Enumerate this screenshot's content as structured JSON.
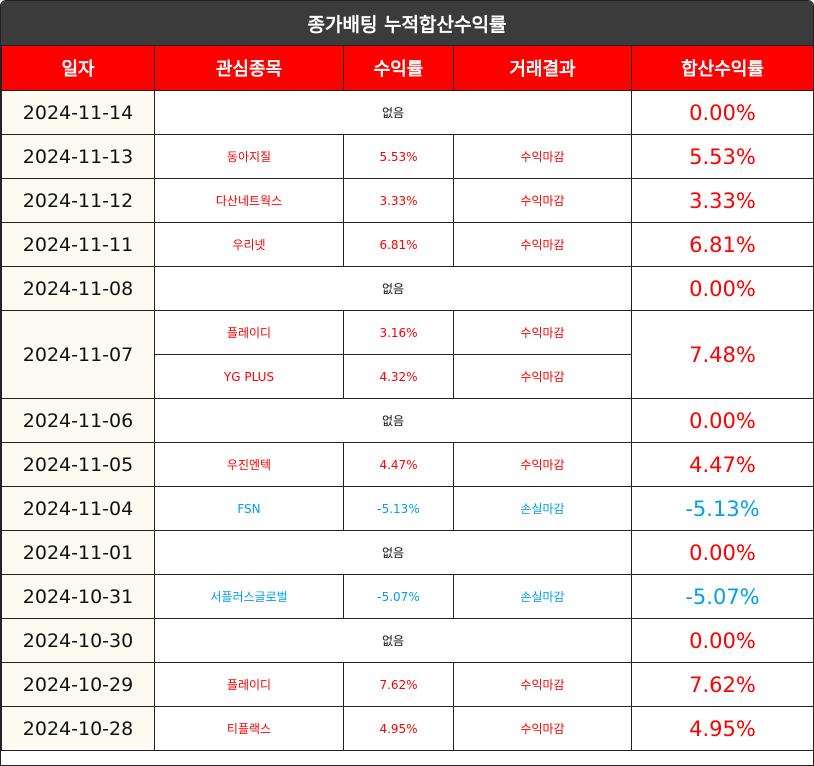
{
  "title": "종가배팅 누적합산수익률",
  "headers": [
    "일자",
    "관심종목",
    "수익률",
    "거래결과",
    "합산수익률"
  ],
  "rows": [
    {
      "date": "2024-11-14",
      "none": "없음",
      "total": "0.00%"
    },
    {
      "date": "2024-11-13",
      "name": "동아지질",
      "rate": "5.53%",
      "result": "수익마감",
      "total": "5.53%"
    },
    {
      "date": "2024-11-12",
      "name": "다산네트웍스",
      "rate": "3.33%",
      "result": "수익마감",
      "total": "3.33%"
    },
    {
      "date": "2024-11-11",
      "name": "우리넷",
      "rate": "6.81%",
      "result": "수익마감",
      "total": "6.81%"
    },
    {
      "date": "2024-11-08",
      "none": "없음",
      "total": "0.00%"
    },
    {
      "date": "2024-11-07",
      "name": "플레이디",
      "rate": "3.16%",
      "result": "수익마감",
      "total": "7.48%",
      "name2": "YG PLUS",
      "rate2": "4.32%",
      "result2": "수익마감"
    },
    {
      "date": "2024-11-06",
      "none": "없음",
      "total": "0.00%"
    },
    {
      "date": "2024-11-05",
      "name": "우진엔텍",
      "rate": "4.47%",
      "result": "수익마감",
      "total": "4.47%"
    },
    {
      "date": "2024-11-04",
      "name": "FSN",
      "rate": "-5.13%",
      "result": "손실마감",
      "total": "-5.13%"
    },
    {
      "date": "2024-11-01",
      "none": "없음",
      "total": "0.00%"
    },
    {
      "date": "2024-10-31",
      "name": "서플러스글로벌",
      "rate": "-5.07%",
      "result": "손실마감",
      "total": "-5.07%"
    },
    {
      "date": "2024-10-30",
      "none": "없음",
      "total": "0.00%"
    },
    {
      "date": "2024-10-29",
      "name": "플레이디",
      "rate": "7.62%",
      "result": "수익마감",
      "total": "7.62%"
    },
    {
      "date": "2024-10-28",
      "name": "티플랙스",
      "rate": "4.95%",
      "result": "수익마감",
      "total": "4.95%"
    }
  ],
  "colors": {
    "header_bg": "#ff0000",
    "title_bg": "#3b3b3b",
    "profit": "#ff0000",
    "loss": "#00a2e8",
    "date_bg": "#fdfbf1"
  }
}
